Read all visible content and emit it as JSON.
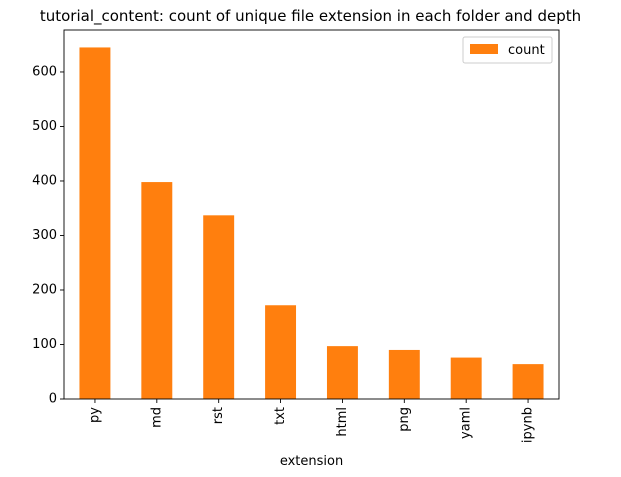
{
  "chart_data": {
    "type": "bar",
    "title": "tutorial_content: count of unique file extension in each folder and depth",
    "xlabel": "extension",
    "ylabel": "",
    "categories": [
      "py",
      "md",
      "rst",
      "txt",
      "html",
      "png",
      "yaml",
      "ipynb"
    ],
    "series": [
      {
        "name": "count",
        "values": [
          645,
          398,
          337,
          172,
          97,
          90,
          76,
          64
        ],
        "color": "#ff7f0e"
      }
    ],
    "ylim": [
      0,
      677
    ],
    "yticks": [
      0,
      100,
      200,
      300,
      400,
      500,
      600
    ],
    "grid": false,
    "legend_position": "top-right"
  }
}
